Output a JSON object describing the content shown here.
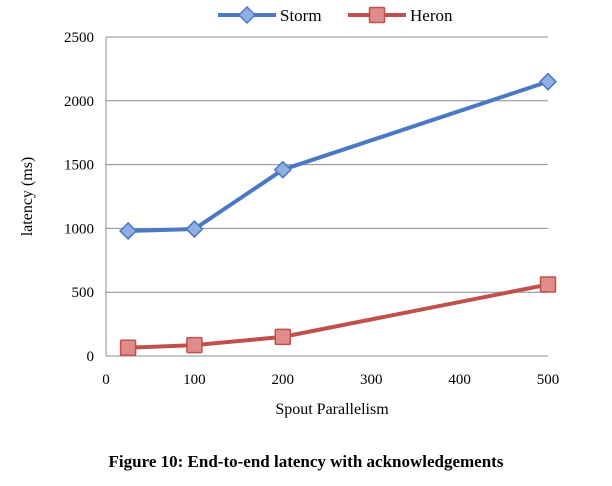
{
  "caption": "Figure 10: End-to-end latency with acknowledgements",
  "chart_data": {
    "type": "line",
    "xlabel": "Spout Parallelism",
    "ylabel": "latency (ms)",
    "x_tick_labels": [
      "0",
      "100",
      "200",
      "300",
      "400",
      "500"
    ],
    "y_ticks": [
      0,
      500,
      1000,
      1500,
      2000,
      2500
    ],
    "ylim": [
      0,
      2500
    ],
    "grid": "horizontal",
    "legend_position": "top",
    "series": [
      {
        "name": "Storm",
        "color": "#4a78c2",
        "marker": "diamond",
        "points": [
          {
            "x_label_pos": 0.25,
            "y": 980
          },
          {
            "x_label_pos": 1,
            "y": 995
          },
          {
            "x_label_pos": 2,
            "y": 1460
          },
          {
            "x_label_pos": 5,
            "y": 2150
          }
        ]
      },
      {
        "name": "Heron",
        "color": "#c0504d",
        "marker": "square",
        "points": [
          {
            "x_label_pos": 0.25,
            "y": 65
          },
          {
            "x_label_pos": 1,
            "y": 85
          },
          {
            "x_label_pos": 2,
            "y": 150
          },
          {
            "x_label_pos": 5,
            "y": 560
          }
        ]
      }
    ]
  }
}
